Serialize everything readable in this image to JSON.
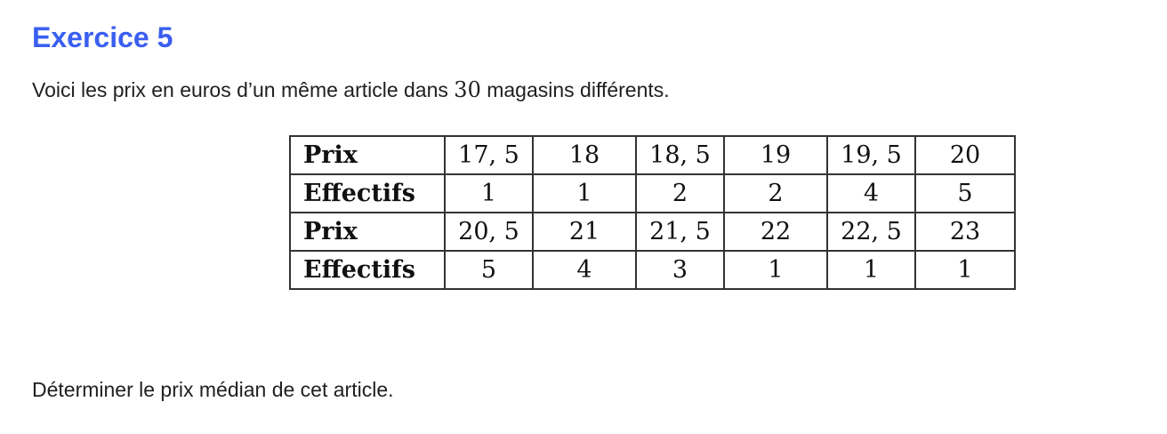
{
  "exercise": {
    "title": "Exercice 5",
    "intro_before": "Voici les prix en euros d’un même article dans ",
    "intro_number": "30",
    "intro_after": " magasins différents.",
    "question": "Déterminer le prix médian de cet article."
  },
  "table": {
    "rows": [
      {
        "label": "Prix",
        "cells": [
          "17, 5",
          "18",
          "18, 5",
          "19",
          "19, 5",
          "20"
        ]
      },
      {
        "label": "Effectifs",
        "cells": [
          "1",
          "1",
          "2",
          "2",
          "4",
          "5"
        ]
      },
      {
        "label": "Prix",
        "cells": [
          "20, 5",
          "21",
          "21, 5",
          "22",
          "22, 5",
          "23"
        ]
      },
      {
        "label": "Effectifs",
        "cells": [
          "5",
          "4",
          "3",
          "1",
          "1",
          "1"
        ]
      }
    ]
  },
  "colors": {
    "title": "#3a5ff0",
    "text": "#1f1f1f",
    "border": "#333333"
  }
}
